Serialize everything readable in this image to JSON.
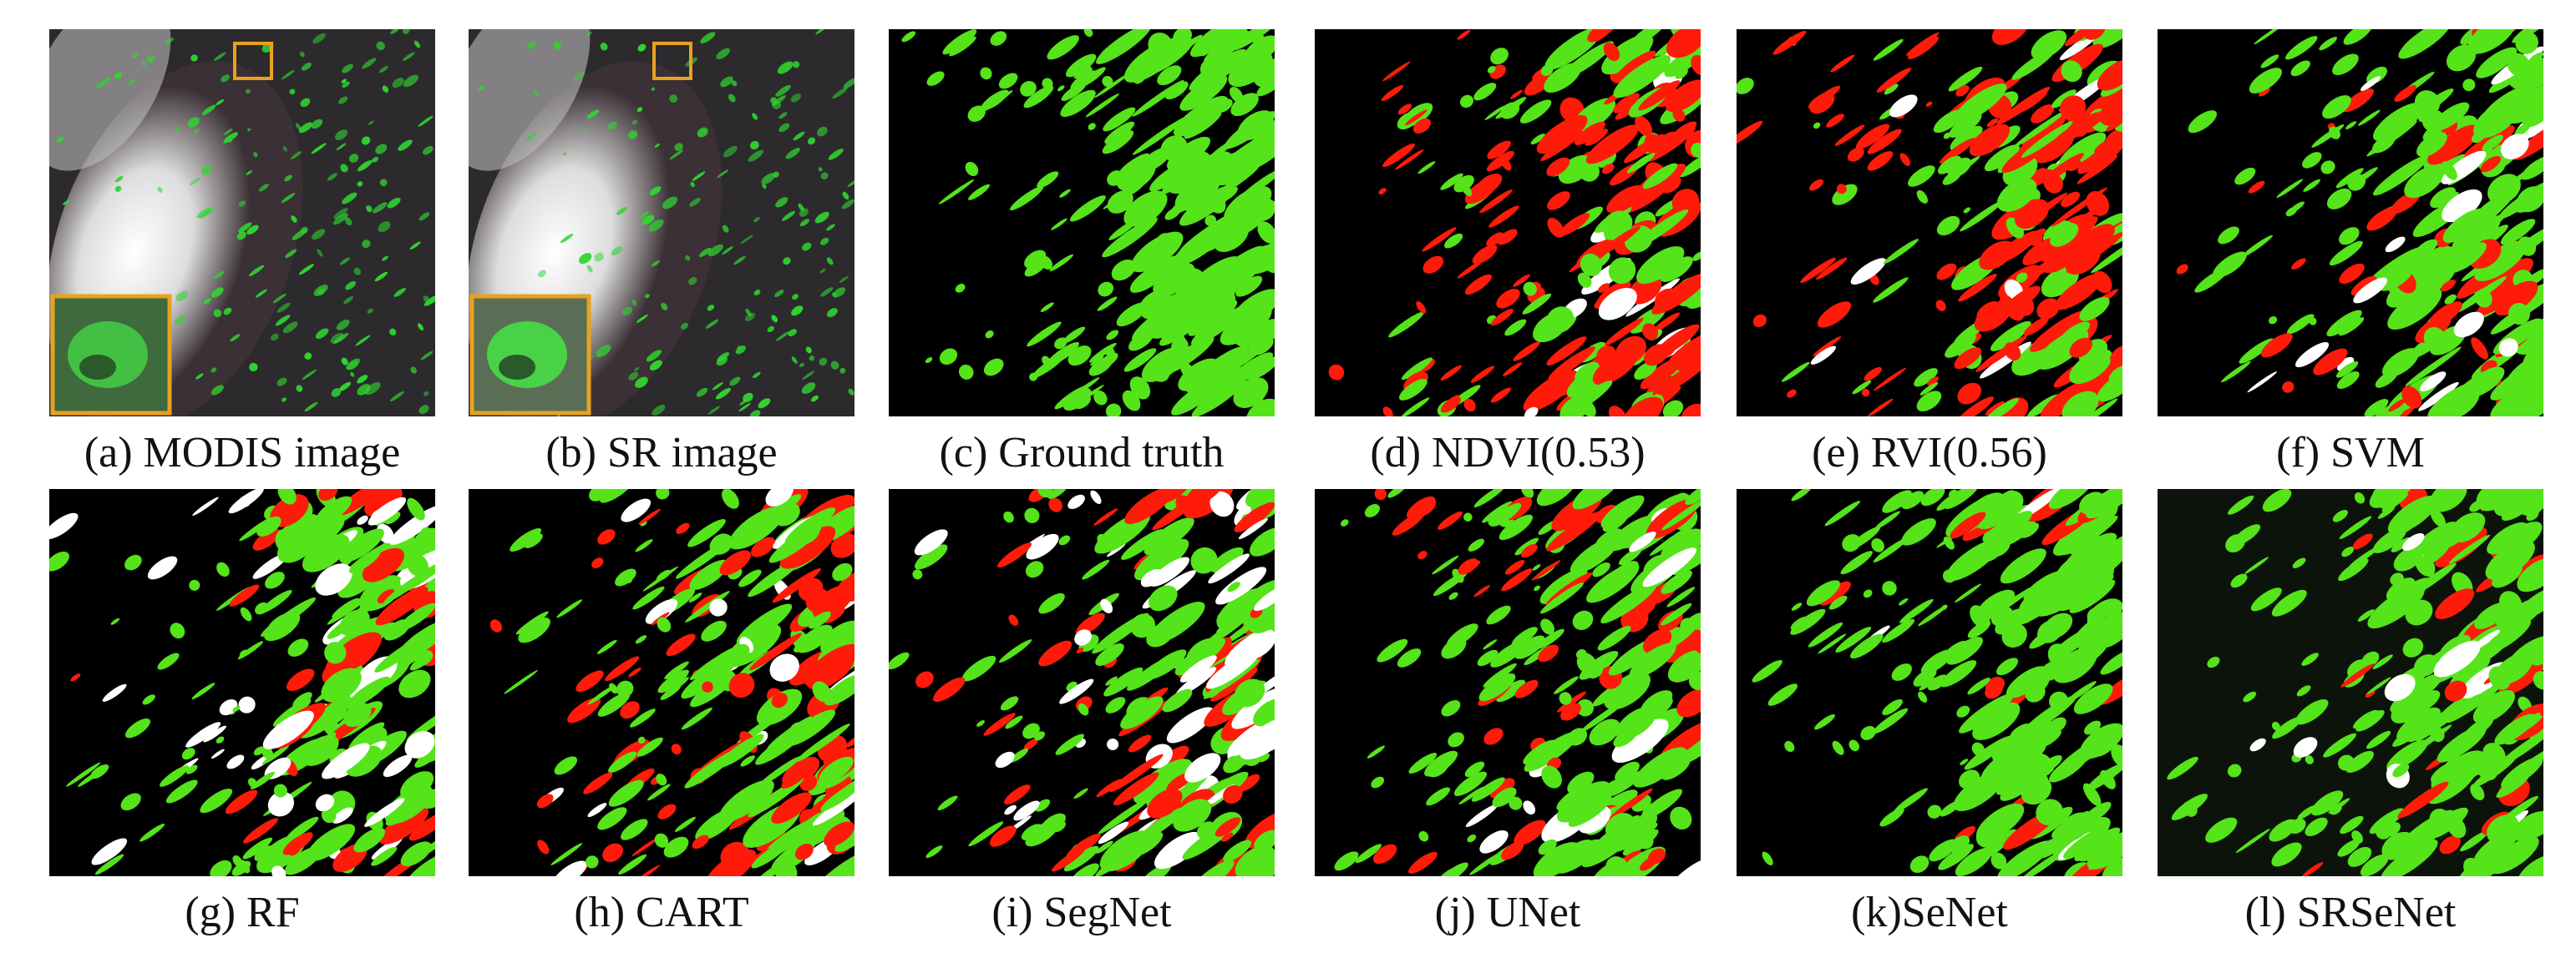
{
  "panels": [
    {
      "caption": "(a) MODIS image"
    },
    {
      "caption": "(b) SR image"
    },
    {
      "caption": "(c) Ground truth"
    },
    {
      "caption": "(d) NDVI(0.53)"
    },
    {
      "caption": "(e) RVI(0.56)"
    },
    {
      "caption": "(f) SVM"
    },
    {
      "caption": "(g) RF"
    },
    {
      "caption": "(h) CART"
    },
    {
      "caption": "(i) SegNet"
    },
    {
      "caption": "(j) UNet"
    },
    {
      "caption": "(k)SeNet"
    },
    {
      "caption": "(l) SRSeNet"
    }
  ]
}
